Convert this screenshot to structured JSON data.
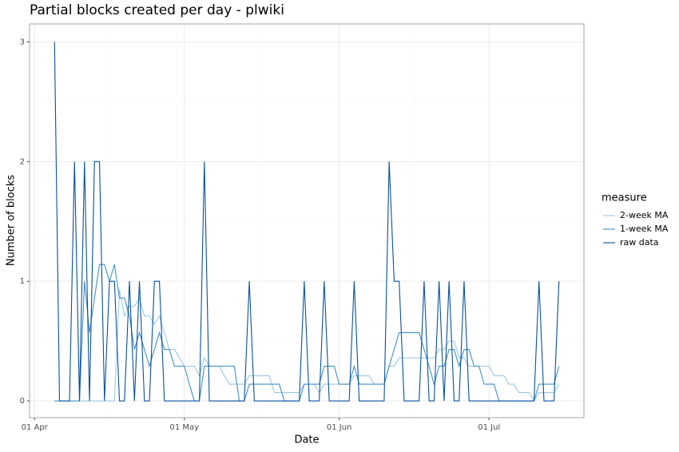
{
  "chart_data": {
    "type": "line",
    "title": "Partial blocks created per day - plwiki",
    "xlabel": "Date",
    "ylabel": "Number of blocks",
    "legend_title": "measure",
    "legend": "right",
    "grid": true,
    "x": [
      "05 Apr",
      "06 Apr",
      "07 Apr",
      "08 Apr",
      "09 Apr",
      "10 Apr",
      "11 Apr",
      "12 Apr",
      "13 Apr",
      "14 Apr",
      "15 Apr",
      "16 Apr",
      "17 Apr",
      "18 Apr",
      "19 Apr",
      "20 Apr",
      "21 Apr",
      "22 Apr",
      "23 Apr",
      "24 Apr",
      "25 Apr",
      "26 Apr",
      "27 Apr",
      "28 Apr",
      "29 Apr",
      "30 Apr",
      "01 May",
      "02 May",
      "03 May",
      "04 May",
      "05 May",
      "06 May",
      "07 May",
      "08 May",
      "09 May",
      "10 May",
      "11 May",
      "12 May",
      "13 May",
      "14 May",
      "15 May",
      "16 May",
      "17 May",
      "18 May",
      "19 May",
      "20 May",
      "21 May",
      "22 May",
      "23 May",
      "24 May",
      "25 May",
      "26 May",
      "27 May",
      "28 May",
      "29 May",
      "30 May",
      "31 May",
      "01 Jun",
      "02 Jun",
      "03 Jun",
      "04 Jun",
      "05 Jun",
      "06 Jun",
      "07 Jun",
      "08 Jun",
      "09 Jun",
      "10 Jun",
      "11 Jun",
      "12 Jun",
      "13 Jun",
      "14 Jun",
      "15 Jun",
      "16 Jun",
      "17 Jun",
      "18 Jun",
      "19 Jun",
      "20 Jun",
      "21 Jun",
      "22 Jun",
      "23 Jun",
      "24 Jun",
      "25 Jun",
      "26 Jun",
      "27 Jun",
      "28 Jun",
      "29 Jun",
      "30 Jun",
      "01 Jul",
      "02 Jul",
      "03 Jul",
      "04 Jul",
      "05 Jul",
      "06 Jul",
      "07 Jul",
      "08 Jul",
      "09 Jul",
      "10 Jul",
      "11 Jul",
      "12 Jul",
      "13 Jul",
      "14 Jul",
      "15 Jul"
    ],
    "xlim": [
      "31 Mar",
      "20 Jul"
    ],
    "xticks": [
      "01 Apr",
      "01 May",
      "01 Jun",
      "01 Jul"
    ],
    "ylim": [
      -0.14,
      3.15
    ],
    "yticks": [
      0,
      1,
      2,
      3
    ],
    "series": [
      {
        "name": "2-week MA",
        "color": "#9ecae1",
        "values": [
          0,
          0,
          0,
          0,
          0,
          0,
          0,
          0,
          0,
          0,
          0,
          0,
          0,
          0.93,
          0.71,
          0.79,
          0.79,
          0.86,
          0.71,
          0.71,
          0.64,
          0.71,
          0.57,
          0.43,
          0.43,
          0.36,
          0.29,
          0.29,
          0.29,
          0.21,
          0.36,
          0.29,
          0.29,
          0.29,
          0.21,
          0.14,
          0.14,
          0.14,
          0.14,
          0.21,
          0.21,
          0.21,
          0.21,
          0.21,
          0.07,
          0.07,
          0.07,
          0.07,
          0.07,
          0.07,
          0.14,
          0.14,
          0.14,
          0.07,
          0.14,
          0.14,
          0.14,
          0.14,
          0.14,
          0.14,
          0.21,
          0.21,
          0.21,
          0.21,
          0.14,
          0.14,
          0.14,
          0.29,
          0.29,
          0.36,
          0.36,
          0.36,
          0.36,
          0.36,
          0.36,
          0.36,
          0.36,
          0.43,
          0.43,
          0.5,
          0.5,
          0.36,
          0.36,
          0.29,
          0.29,
          0.29,
          0.29,
          0.29,
          0.21,
          0.21,
          0.21,
          0.14,
          0.14,
          0.07,
          0.07,
          0.07,
          0,
          0.07,
          0.07,
          0.07,
          0.07,
          0.14
        ]
      },
      {
        "name": "1-week MA",
        "color": "#4292c6",
        "values": [
          0,
          0,
          0,
          0,
          0,
          0,
          1,
          0.57,
          0.86,
          1.14,
          1.14,
          1,
          1.14,
          0.86,
          0.86,
          0.71,
          0.43,
          0.57,
          0.43,
          0.29,
          0.43,
          0.57,
          0.43,
          0.43,
          0.29,
          0.29,
          0.29,
          0.14,
          0,
          0,
          0.29,
          0.29,
          0.29,
          0.29,
          0.29,
          0.29,
          0.29,
          0,
          0,
          0.14,
          0.14,
          0.14,
          0.14,
          0.14,
          0.14,
          0.14,
          0,
          0,
          0,
          0,
          0.14,
          0.14,
          0.14,
          0.14,
          0.29,
          0.29,
          0.29,
          0.14,
          0.14,
          0.14,
          0.29,
          0.14,
          0.14,
          0.14,
          0.14,
          0.14,
          0.14,
          0.29,
          0.43,
          0.57,
          0.57,
          0.57,
          0.57,
          0.57,
          0.43,
          0.29,
          0.14,
          0.29,
          0.29,
          0.43,
          0.43,
          0.29,
          0.43,
          0.43,
          0.29,
          0.29,
          0.14,
          0.14,
          0.14,
          0,
          0,
          0,
          0,
          0,
          0,
          0,
          0,
          0.14,
          0.14,
          0.14,
          0.14,
          0.29
        ]
      },
      {
        "name": "raw data",
        "color": "#08519c",
        "values": [
          3,
          0,
          0,
          0,
          2,
          0,
          2,
          0,
          2,
          2,
          0,
          1,
          1,
          0,
          0,
          1,
          0,
          1,
          0,
          0,
          1,
          1,
          0,
          0,
          0,
          0,
          0,
          0,
          0,
          0,
          2,
          0,
          0,
          0,
          0,
          0,
          0,
          0,
          0,
          1,
          0,
          0,
          0,
          0,
          0,
          0,
          0,
          0,
          0,
          0,
          1,
          0,
          0,
          0,
          1,
          0,
          0,
          0,
          0,
          0,
          1,
          0,
          0,
          0,
          0,
          0,
          0,
          2,
          1,
          1,
          0,
          0,
          0,
          0,
          1,
          0,
          0,
          1,
          0,
          1,
          0,
          0,
          1,
          0,
          0,
          0,
          0,
          0,
          0,
          0,
          0,
          0,
          0,
          0,
          0,
          0,
          0,
          1,
          0,
          0,
          0,
          1
        ]
      }
    ]
  }
}
